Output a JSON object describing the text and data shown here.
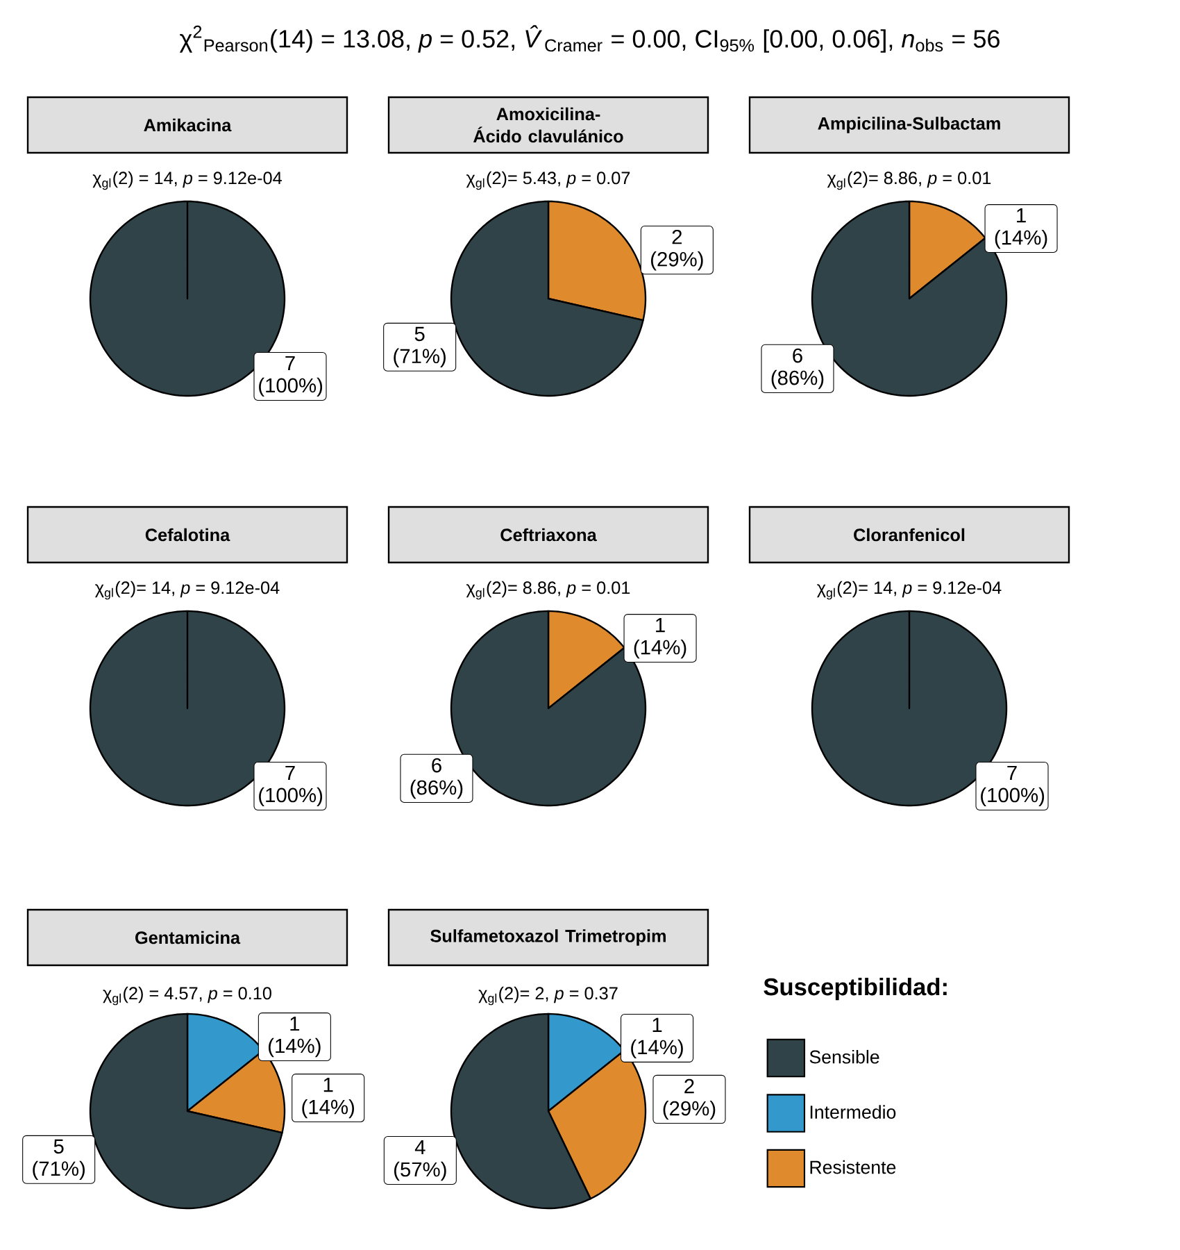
{
  "chart_data": [
    {
      "type": "other",
      "title": "χ$^{2}$$_{Pearson}$(14) = 13.08, *p* = 0.52, *V̂*$_{Cramer}$ = 0.00, CI$_{95%}$ [0.00, 0.06], *n*$_{obs}$ = 56"
    },
    {
      "type": "pie",
      "title": "Amikacina",
      "subtitle": "χ$_{gl}$(2) = 14,  *p* = 9.12e-04",
      "categories": [
        null,
        null,
        null
      ],
      "values": [
        7,
        0,
        0
      ],
      "colors": [
        "#2f4348",
        "#3399cc",
        "#e08a2e"
      ],
      "value_labels": [
        "7 (100%)",
        null,
        null
      ]
    },
    {
      "type": "pie",
      "title": "Amoxicilina- Ácido clavulánico",
      "subtitle": "χ$_{gl}$(2)= 5.43,  *p* = 0.07",
      "categories": [
        null,
        null,
        null
      ],
      "values": [
        5,
        0,
        2
      ],
      "colors": [
        "#2f4348",
        "#3399cc",
        "#e08a2e"
      ],
      "value_labels": [
        "5 (71%)",
        null,
        "2 (29%)"
      ]
    },
    {
      "type": "pie",
      "title": "Ampicilina-Sulbactam",
      "subtitle": "χ$_{gl}$(2)= 8.86,  *p* = 0.01",
      "categories": [
        null,
        null,
        null
      ],
      "values": [
        6,
        0,
        1
      ],
      "colors": [
        "#2f4348",
        "#3399cc",
        "#e08a2e"
      ],
      "value_labels": [
        "6 (86%)",
        null,
        "1 (14%)"
      ]
    },
    {
      "type": "pie",
      "title": "Cefalotina",
      "subtitle": "χ$_{gl}$(2)= 14,  *p* = 9.12e-04",
      "categories": [
        null,
        null,
        null
      ],
      "values": [
        7,
        0,
        0
      ],
      "colors": [
        "#2f4348",
        "#3399cc",
        "#e08a2e"
      ],
      "value_labels": [
        "7 (100%)",
        null,
        null
      ]
    },
    {
      "type": "pie",
      "title": "Ceftriaxona",
      "subtitle": "χ$_{gl}$(2)= 8.86,  *p* = 0.01",
      "categories": [
        null,
        null,
        null
      ],
      "values": [
        6,
        0,
        1
      ],
      "colors": [
        "#2f4348",
        "#3399cc",
        "#e08a2e"
      ],
      "value_labels": [
        "6 (86%)",
        null,
        "1 (14%)"
      ]
    },
    {
      "type": "pie",
      "title": "Cloranfenicol",
      "subtitle": "χ$_{gl}$(2)= 14,  *p* = 9.12e-04",
      "categories": [
        null,
        null,
        null
      ],
      "values": [
        7,
        0,
        0
      ],
      "colors": [
        "#2f4348",
        "#3399cc",
        "#e08a2e"
      ],
      "value_labels": [
        "7 (100%)",
        null,
        null
      ]
    },
    {
      "type": "pie",
      "title": "Gentamicina",
      "subtitle": "χ$_{gl}$(2) = 4.57,  *p* = 0.10",
      "categories": [
        null,
        null,
        null
      ],
      "values": [
        5,
        1,
        1
      ],
      "colors": [
        "#2f4348",
        "#3399cc",
        "#e08a2e"
      ],
      "value_labels": [
        "5 (71%)",
        "1 (14%)",
        "1 (14%)"
      ]
    },
    {
      "type": "pie",
      "title": "Sulfametoxazol Trimetropim",
      "subtitle": "χ$_{gl}$(2)= 2,  *p* = 0.37",
      "categories": [
        "Sensible",
        "Intermedio",
        "Resistente"
      ],
      "values": [
        4,
        1,
        2
      ],
      "colors": [
        "#2f4348",
        "#3399cc",
        "#e08a2e"
      ],
      "value_labels": [
        "4 (57%)",
        "1 (14%)",
        "2 (29%)"
      ],
      "legend": "right",
      "legend_title": "Susceptibilidad:"
    }
  ]
}
